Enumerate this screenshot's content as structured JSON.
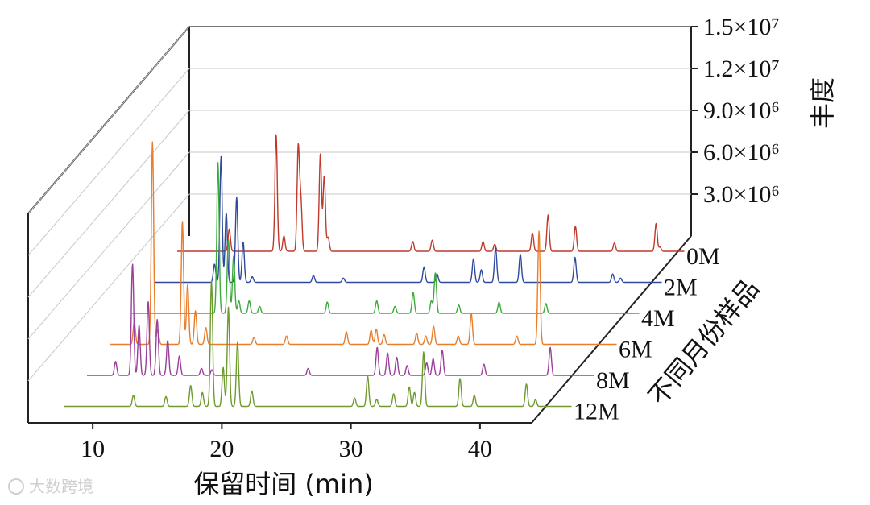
{
  "chart_data": {
    "type": "line",
    "subtype": "3d-stacked-chromatogram",
    "xlabel": "保留时间 (min)",
    "ylabel": "丰度",
    "zlabel": "不同月份样品",
    "x_ticks": [
      "10",
      "20",
      "30",
      "40"
    ],
    "x_tick_values": [
      10,
      20,
      30,
      40
    ],
    "x_range": [
      5,
      44
    ],
    "y_ticks": [
      "3.0×10⁶",
      "6.0×10⁶",
      "9.0×10⁶",
      "1.2×10⁷",
      "1.5×10⁷"
    ],
    "y_tick_values": [
      3000000,
      6000000,
      9000000,
      12000000,
      15000000
    ],
    "y_range": [
      0,
      15000000
    ],
    "series": [
      {
        "name": "0M",
        "color": "#c0392b",
        "peaks": [
          [
            9.0,
            1600000
          ],
          [
            12.6,
            8400000
          ],
          [
            13.2,
            1100000
          ],
          [
            14.3,
            7400000
          ],
          [
            14.5,
            3600000
          ],
          [
            16.0,
            7000000
          ],
          [
            16.3,
            5400000
          ],
          [
            16.6,
            1000000
          ],
          [
            23.1,
            700000
          ],
          [
            24.6,
            800000
          ],
          [
            28.5,
            700000
          ],
          [
            29.4,
            500000
          ],
          [
            32.3,
            1300000
          ],
          [
            33.5,
            2600000
          ],
          [
            35.6,
            1800000
          ],
          [
            38.6,
            600000
          ],
          [
            41.8,
            2000000
          ],
          [
            42.1,
            300000
          ]
        ]
      },
      {
        "name": "2M",
        "color": "#2e4a9e",
        "peaks": [
          [
            9.6,
            1300000
          ],
          [
            10.1,
            9000000
          ],
          [
            10.5,
            5000000
          ],
          [
            11.3,
            6100000
          ],
          [
            11.8,
            2900000
          ],
          [
            12.5,
            400000
          ],
          [
            17.2,
            500000
          ],
          [
            19.5,
            300000
          ],
          [
            25.7,
            1100000
          ],
          [
            26.7,
            600000
          ],
          [
            29.5,
            1700000
          ],
          [
            30.1,
            900000
          ],
          [
            31.2,
            2500000
          ],
          [
            33.1,
            2000000
          ],
          [
            37.3,
            1800000
          ],
          [
            40.2,
            600000
          ],
          [
            40.8,
            300000
          ]
        ]
      },
      {
        "name": "4M",
        "color": "#3daa3d",
        "peaks": [
          [
            11.6,
            10800000
          ],
          [
            12.4,
            5300000
          ],
          [
            12.8,
            4100000
          ],
          [
            13.2,
            900000
          ],
          [
            14.0,
            900000
          ],
          [
            14.8,
            500000
          ],
          [
            20.0,
            800000
          ],
          [
            23.8,
            900000
          ],
          [
            25.2,
            500000
          ],
          [
            26.6,
            1500000
          ],
          [
            28.0,
            900000
          ],
          [
            28.3,
            2900000
          ],
          [
            30.1,
            600000
          ],
          [
            33.2,
            800000
          ],
          [
            36.8,
            700000
          ]
        ]
      },
      {
        "name": "6M",
        "color": "#e87d2b",
        "peaks": [
          [
            6.9,
            1600000
          ],
          [
            8.3,
            14500000
          ],
          [
            8.7,
            1100000
          ],
          [
            10.6,
            8800000
          ],
          [
            11.0,
            4300000
          ],
          [
            11.6,
            2400000
          ],
          [
            12.4,
            1200000
          ],
          [
            16.1,
            500000
          ],
          [
            18.6,
            600000
          ],
          [
            23.2,
            900000
          ],
          [
            25.1,
            1000000
          ],
          [
            25.5,
            1100000
          ],
          [
            26.1,
            700000
          ],
          [
            28.6,
            800000
          ],
          [
            29.3,
            600000
          ],
          [
            29.9,
            1300000
          ],
          [
            31.8,
            600000
          ],
          [
            32.8,
            2200000
          ],
          [
            36.3,
            600000
          ],
          [
            38.0,
            8100000
          ]
        ]
      },
      {
        "name": "8M",
        "color": "#9a3f9a",
        "peaks": [
          [
            7.2,
            1000000
          ],
          [
            8.5,
            8000000
          ],
          [
            9.0,
            3600000
          ],
          [
            9.7,
            5300000
          ],
          [
            10.4,
            4000000
          ],
          [
            11.2,
            2500000
          ],
          [
            12.1,
            1400000
          ],
          [
            13.8,
            500000
          ],
          [
            14.6,
            400000
          ],
          [
            22.0,
            500000
          ],
          [
            27.3,
            2000000
          ],
          [
            28.1,
            1600000
          ],
          [
            28.8,
            1300000
          ],
          [
            29.6,
            700000
          ],
          [
            31.1,
            900000
          ],
          [
            31.6,
            1200000
          ],
          [
            32.3,
            1800000
          ],
          [
            35.5,
            800000
          ],
          [
            40.6,
            2000000
          ]
        ]
      },
      {
        "name": "12M",
        "color": "#6e9a2e",
        "peaks": [
          [
            10.3,
            800000
          ],
          [
            12.8,
            700000
          ],
          [
            14.7,
            1500000
          ],
          [
            15.6,
            1000000
          ],
          [
            16.3,
            9000000
          ],
          [
            17.2,
            2800000
          ],
          [
            17.6,
            7100000
          ],
          [
            18.3,
            4600000
          ],
          [
            19.4,
            1100000
          ],
          [
            27.3,
            600000
          ],
          [
            28.3,
            2200000
          ],
          [
            29.0,
            500000
          ],
          [
            30.3,
            900000
          ],
          [
            31.5,
            1400000
          ],
          [
            31.9,
            1000000
          ],
          [
            32.6,
            3900000
          ],
          [
            35.4,
            2000000
          ],
          [
            36.5,
            800000
          ],
          [
            40.5,
            1600000
          ],
          [
            41.2,
            500000
          ]
        ]
      }
    ],
    "watermark": "大数跨境"
  }
}
